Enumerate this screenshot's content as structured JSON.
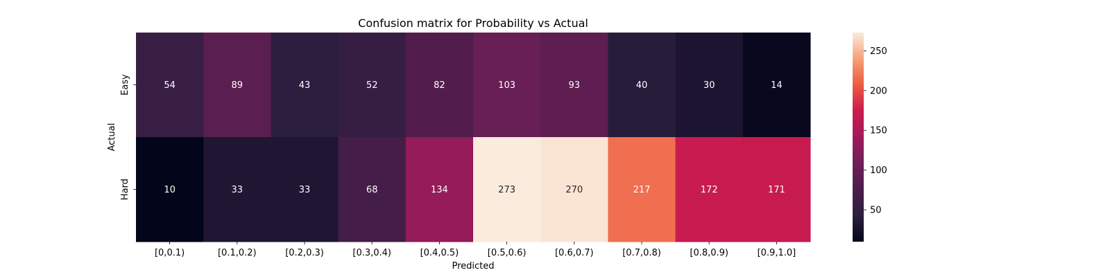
{
  "chart_data": {
    "type": "heatmap",
    "title": "Confusion matrix for Probability vs Actual",
    "xlabel": "Predicted",
    "ylabel": "Actual",
    "x_categories": [
      "[0,0.1)",
      "[0.1,0.2)",
      "[0.2,0.3)",
      "[0.3,0.4)",
      "[0.4,0.5)",
      "[0.5,0.6)",
      "[0.6,0.7)",
      "[0.7,0.8)",
      "[0.8,0.9)",
      "[0.9,1.0]"
    ],
    "y_categories": [
      "Easy",
      "Hard"
    ],
    "values": [
      [
        54,
        89,
        43,
        52,
        82,
        103,
        93,
        40,
        30,
        14
      ],
      [
        10,
        33,
        33,
        68,
        134,
        273,
        270,
        217,
        172,
        171
      ]
    ],
    "colorbar": {
      "ticks": [
        50,
        100,
        150,
        200,
        250
      ],
      "range": [
        10,
        273
      ],
      "colormap": "rocket"
    }
  }
}
